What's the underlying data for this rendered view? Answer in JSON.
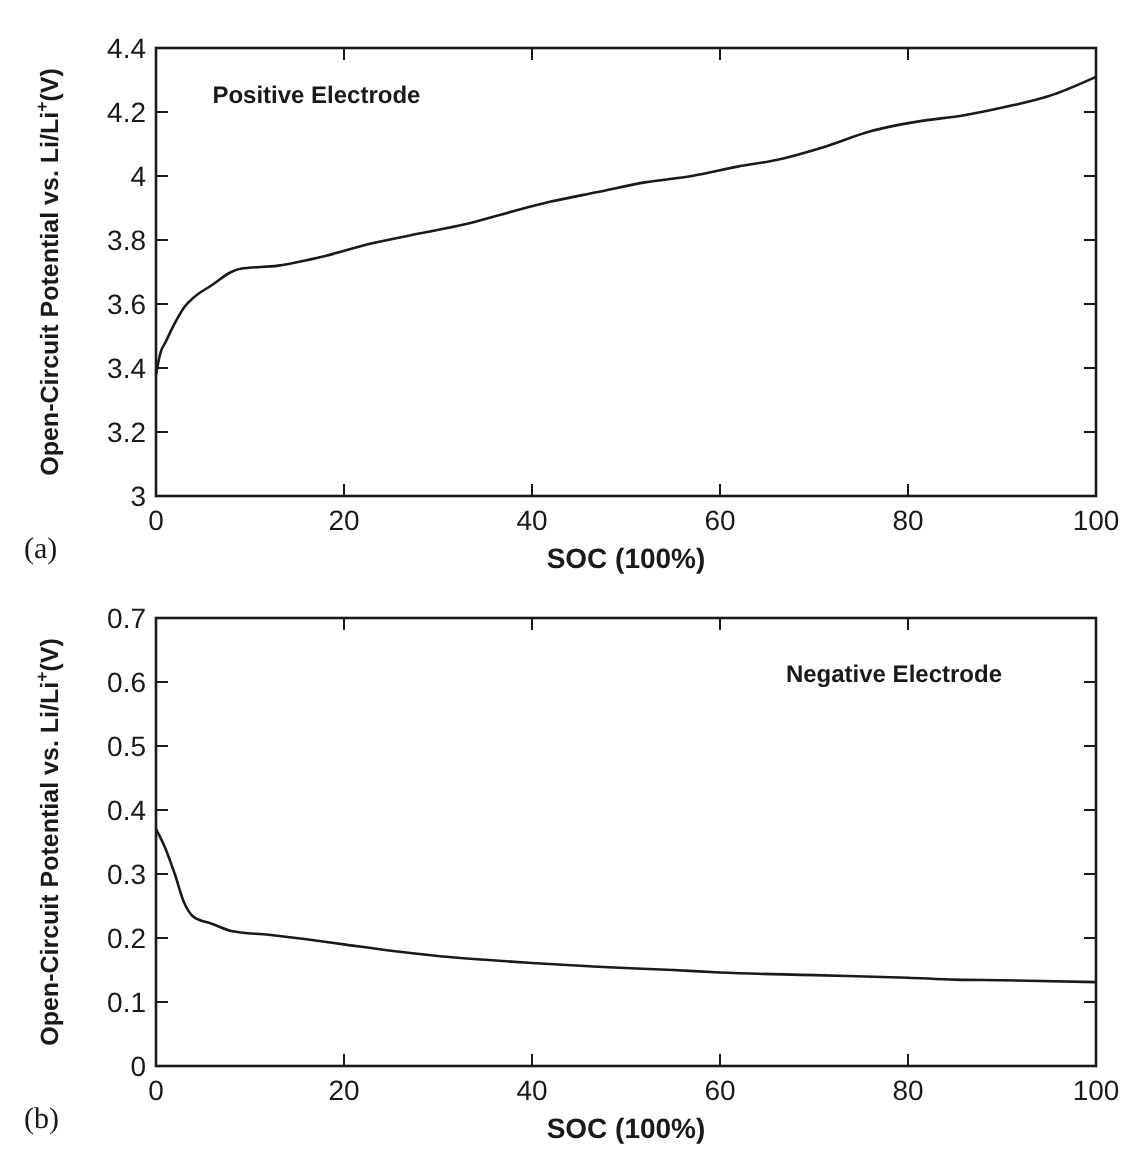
{
  "chart_data": [
    {
      "type": "line",
      "xlabel": "SOC (100%)",
      "ylabel": "Open-Circuit Potential vs. Li/Li$^{+}$(V)",
      "annotations": [
        "(a)",
        "Positive Electrode"
      ],
      "xlim": [
        0,
        100
      ],
      "xticks": [
        0,
        20,
        40,
        60,
        80,
        100
      ],
      "ylim": [
        3,
        4.4
      ],
      "yticks": [
        3,
        3.2,
        3.4,
        3.6,
        3.8,
        4,
        4.2,
        4.4
      ],
      "grid": false,
      "series": [
        {
          "color": "#1a1a1a",
          "x": [
            0,
            0.5,
            1,
            2,
            3,
            4,
            6,
            8,
            9,
            13,
            18,
            23,
            28,
            33,
            38,
            42,
            47,
            52,
            57,
            62,
            66,
            71,
            76,
            81,
            86,
            91,
            95,
            100
          ],
          "values": [
            3.38,
            3.45,
            3.48,
            3.54,
            3.59,
            3.62,
            3.66,
            3.7,
            3.71,
            3.72,
            3.75,
            3.79,
            3.82,
            3.85,
            3.89,
            3.92,
            3.95,
            3.98,
            4.0,
            4.03,
            4.05,
            4.09,
            4.14,
            4.17,
            4.19,
            4.22,
            4.25,
            4.31
          ]
        }
      ]
    },
    {
      "type": "line",
      "xlabel": "SOC (100%)",
      "ylabel": "Open-Circuit Potential vs. Li/Li$^{+}$(V)",
      "annotations": [
        "(b)",
        "Negative Electrode"
      ],
      "xlim": [
        0,
        100
      ],
      "xticks": [
        0,
        20,
        40,
        60,
        80,
        100
      ],
      "ylim": [
        0,
        0.7
      ],
      "yticks": [
        0,
        0.1,
        0.2,
        0.3,
        0.4,
        0.5,
        0.6,
        0.7
      ],
      "grid": false,
      "series": [
        {
          "color": "#1a1a1a",
          "x": [
            0,
            1,
            2,
            3,
            4,
            6,
            8,
            12,
            16,
            20,
            25,
            30,
            35,
            40,
            47,
            55,
            60,
            70,
            80,
            85,
            90,
            100
          ],
          "values": [
            0.37,
            0.34,
            0.3,
            0.255,
            0.233,
            0.222,
            0.211,
            0.205,
            0.198,
            0.19,
            0.18,
            0.172,
            0.166,
            0.161,
            0.155,
            0.15,
            0.146,
            0.142,
            0.138,
            0.135,
            0.134,
            0.131
          ]
        }
      ]
    }
  ]
}
